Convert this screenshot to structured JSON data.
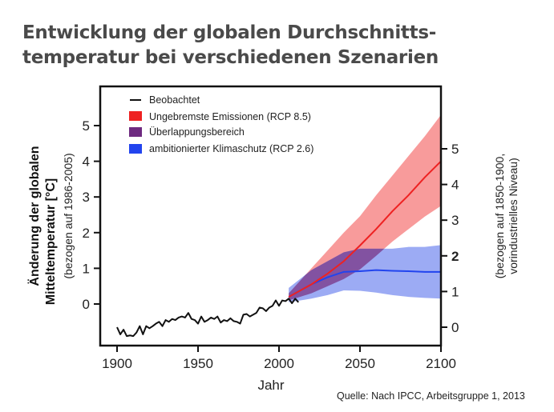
{
  "title_line1": "Entwicklung der globalen Durchschnitts-",
  "title_line2": "temperatur bei verschiedenen Szenarien",
  "source": "Quelle: Nach IPCC, Arbeitsgruppe 1, 2013",
  "chart_data": {
    "type": "line",
    "xlabel": "Jahr",
    "ylabel_left": [
      "Änderung der globalen",
      "Mitteltemperatur [°C]",
      "(bezogen auf 1986-2005)"
    ],
    "ylabel_right": [
      "(bezogen auf 1850-1900,",
      "vorindustrielles Niveau)"
    ],
    "xlim": [
      1890,
      2100
    ],
    "ylim": [
      -1.2,
      5.8
    ],
    "x_ticks": [
      1900,
      1950,
      2000,
      2050,
      2100
    ],
    "y_ticks_left": [
      0,
      1,
      2,
      3,
      4,
      5
    ],
    "y_ticks_right": [
      0,
      1,
      2,
      3,
      4,
      5
    ],
    "y_right_offset": 0.65,
    "y_right_highlight": 2,
    "legend_position": "top-left",
    "colors": {
      "observed": "#111111",
      "rcp85": "#ee2222",
      "rcp85_band": "#f78a8a",
      "overlap": "#7a3a8a",
      "rcp26": "#2244ee",
      "rcp26_band": "#8b9cf2"
    },
    "series": [
      {
        "name": "Beobachtet",
        "x": [
          1900,
          1902,
          1904,
          1906,
          1908,
          1910,
          1912,
          1914,
          1916,
          1918,
          1920,
          1922,
          1924,
          1926,
          1928,
          1930,
          1932,
          1934,
          1936,
          1938,
          1940,
          1942,
          1944,
          1946,
          1948,
          1950,
          1952,
          1954,
          1956,
          1958,
          1960,
          1962,
          1964,
          1966,
          1968,
          1970,
          1972,
          1974,
          1976,
          1978,
          1980,
          1982,
          1984,
          1986,
          1988,
          1990,
          1992,
          1994,
          1996,
          1998,
          2000,
          2002,
          2004,
          2006,
          2008,
          2010,
          2012
        ],
        "y": [
          -0.65,
          -0.85,
          -0.72,
          -0.9,
          -0.88,
          -0.9,
          -0.8,
          -0.62,
          -0.85,
          -0.62,
          -0.68,
          -0.62,
          -0.55,
          -0.5,
          -0.62,
          -0.45,
          -0.5,
          -0.42,
          -0.45,
          -0.38,
          -0.35,
          -0.38,
          -0.25,
          -0.42,
          -0.45,
          -0.55,
          -0.35,
          -0.5,
          -0.45,
          -0.38,
          -0.42,
          -0.35,
          -0.52,
          -0.45,
          -0.48,
          -0.4,
          -0.48,
          -0.5,
          -0.55,
          -0.3,
          -0.28,
          -0.35,
          -0.3,
          -0.25,
          -0.1,
          -0.12,
          -0.2,
          -0.1,
          -0.05,
          0.1,
          -0.05,
          0.1,
          0.08,
          0.15,
          0.02,
          0.15,
          0.05
        ]
      },
      {
        "name": "Ungebremste Emissionen (RCP 8.5)",
        "x": [
          2006,
          2020,
          2030,
          2040,
          2050,
          2060,
          2070,
          2080,
          2090,
          2100
        ],
        "y": [
          0.2,
          0.55,
          0.85,
          1.2,
          1.64,
          2.1,
          2.6,
          3.05,
          3.55,
          4.0
        ],
        "upper": [
          0.3,
          1.0,
          1.5,
          2.0,
          2.46,
          3.05,
          3.6,
          4.15,
          4.7,
          5.3
        ],
        "lower": [
          0.1,
          0.3,
          0.5,
          0.7,
          0.97,
          1.35,
          1.75,
          2.1,
          2.45,
          2.75
        ]
      },
      {
        "name": "ambitionierter Klimaschutz (RCP 2.6)",
        "x": [
          2006,
          2020,
          2030,
          2040,
          2050,
          2060,
          2070,
          2080,
          2090,
          2100
        ],
        "y": [
          0.2,
          0.55,
          0.75,
          0.9,
          0.92,
          0.95,
          0.93,
          0.92,
          0.9,
          0.9
        ],
        "upper": [
          0.45,
          0.95,
          1.2,
          1.45,
          1.55,
          1.55,
          1.55,
          1.6,
          1.6,
          1.65
        ],
        "lower": [
          0.05,
          0.15,
          0.25,
          0.38,
          0.37,
          0.32,
          0.25,
          0.2,
          0.17,
          0.15
        ]
      }
    ],
    "legend": [
      "Beobachtet",
      "Ungebremste Emissionen (RCP 8.5)",
      "Überlappungsbereich",
      "ambitionierter Klimaschutz (RCP 2.6)"
    ]
  }
}
